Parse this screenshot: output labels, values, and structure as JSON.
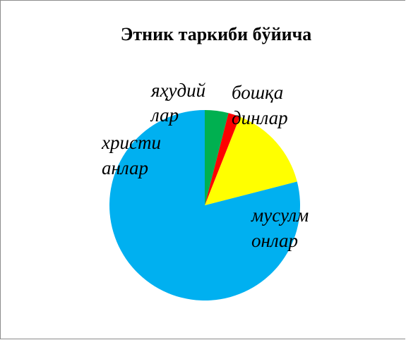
{
  "chart_data": {
    "type": "pie",
    "title": "Этник таркиби бўйича",
    "slices": [
      {
        "label_lines": [
          "мусулм",
          "онлар"
        ],
        "value": 79,
        "color": "#00b0f0"
      },
      {
        "label_lines": [
          "христи",
          "анлар"
        ],
        "value": 15,
        "color": "#ffff00"
      },
      {
        "label_lines": [
          "яҳудий",
          "лар"
        ],
        "value": 2,
        "color": "#ff0000"
      },
      {
        "label_lines": [
          "бошқа",
          "динлар"
        ],
        "value": 4,
        "color": "#00b050"
      }
    ],
    "legend": "none"
  }
}
